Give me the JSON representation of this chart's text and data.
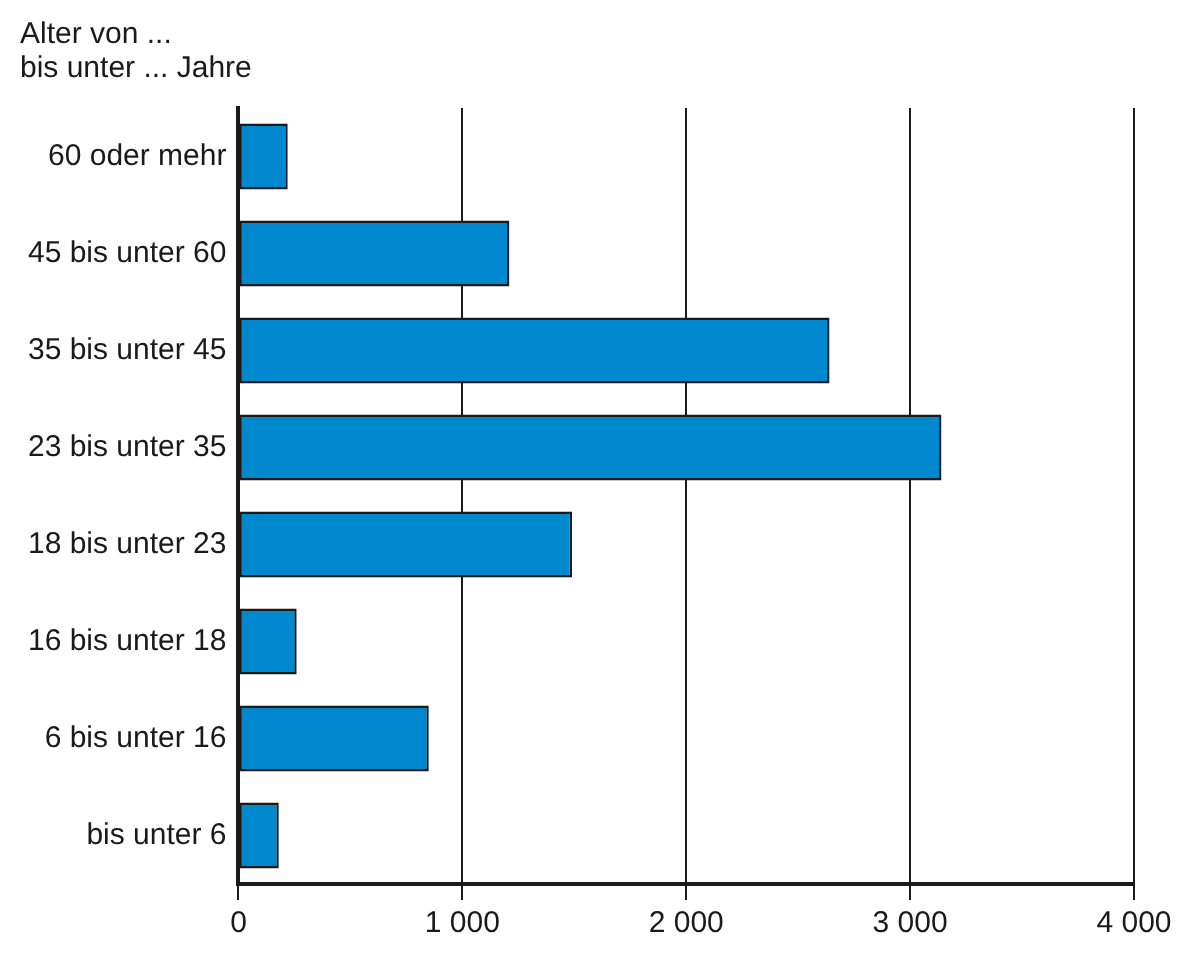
{
  "chart_data": {
    "type": "bar",
    "orientation": "horizontal",
    "ylabel": "Alter von ...\nbis unter ... Jahre",
    "categories": [
      "60 oder mehr",
      "45 bis unter 60",
      "35 bis unter 45",
      "23 bis unter 35",
      "18 bis unter 23",
      "16 bis unter 18",
      "6 bis unter 16",
      "bis unter 6"
    ],
    "values": [
      220,
      1210,
      2640,
      3140,
      1490,
      260,
      850,
      180
    ],
    "color": "#0088cf",
    "xlim": [
      0,
      4000
    ],
    "xticks": [
      {
        "value": 0,
        "label": "0"
      },
      {
        "value": 1000,
        "label": "1 000"
      },
      {
        "value": 2000,
        "label": "2 000"
      },
      {
        "value": 3000,
        "label": "3 000"
      },
      {
        "value": 4000,
        "label": "4 000"
      }
    ],
    "grid": "x",
    "legend": false
  }
}
